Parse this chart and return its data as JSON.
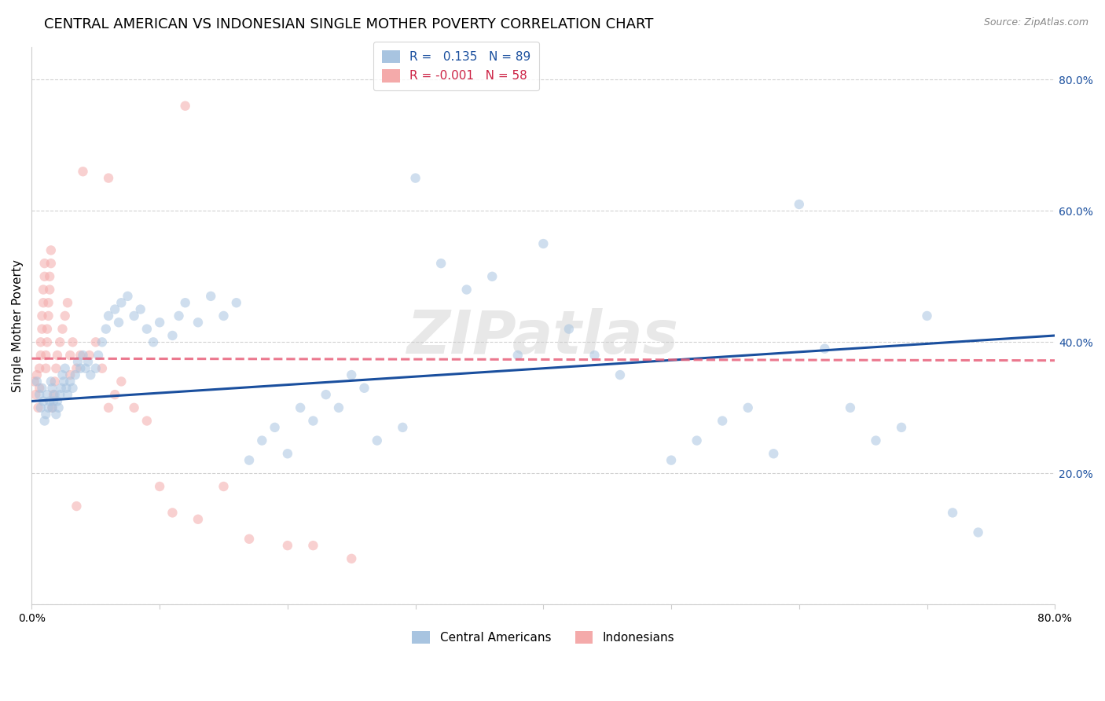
{
  "title": "CENTRAL AMERICAN VS INDONESIAN SINGLE MOTHER POVERTY CORRELATION CHART",
  "source": "Source: ZipAtlas.com",
  "ylabel": "Single Mother Poverty",
  "xlim": [
    0.0,
    0.8
  ],
  "ylim": [
    0.0,
    0.85
  ],
  "ytick_positions": [
    0.0,
    0.2,
    0.4,
    0.6,
    0.8
  ],
  "ytick_labels": [
    "",
    "20.0%",
    "40.0%",
    "60.0%",
    "80.0%"
  ],
  "blue_R": 0.135,
  "blue_N": 89,
  "pink_R": -0.001,
  "pink_N": 58,
  "blue_color": "#A8C4E0",
  "pink_color": "#F4AAAA",
  "blue_line_color": "#1A4F9E",
  "pink_line_color": "#E8607A",
  "watermark": "ZIPatlas",
  "legend_label_blue": "Central Americans",
  "legend_label_pink": "Indonesians",
  "blue_scatter_x": [
    0.004,
    0.006,
    0.007,
    0.008,
    0.009,
    0.01,
    0.011,
    0.012,
    0.013,
    0.014,
    0.015,
    0.016,
    0.016,
    0.017,
    0.018,
    0.019,
    0.02,
    0.021,
    0.022,
    0.023,
    0.024,
    0.025,
    0.026,
    0.027,
    0.028,
    0.03,
    0.032,
    0.034,
    0.036,
    0.038,
    0.04,
    0.042,
    0.044,
    0.046,
    0.05,
    0.052,
    0.055,
    0.058,
    0.06,
    0.065,
    0.068,
    0.07,
    0.075,
    0.08,
    0.085,
    0.09,
    0.095,
    0.1,
    0.11,
    0.115,
    0.12,
    0.13,
    0.14,
    0.15,
    0.16,
    0.17,
    0.18,
    0.19,
    0.2,
    0.21,
    0.22,
    0.23,
    0.24,
    0.25,
    0.26,
    0.27,
    0.29,
    0.3,
    0.32,
    0.34,
    0.36,
    0.38,
    0.4,
    0.42,
    0.44,
    0.46,
    0.5,
    0.52,
    0.54,
    0.56,
    0.58,
    0.6,
    0.62,
    0.64,
    0.66,
    0.68,
    0.7,
    0.72,
    0.74
  ],
  "blue_scatter_y": [
    0.34,
    0.32,
    0.3,
    0.33,
    0.31,
    0.28,
    0.29,
    0.32,
    0.3,
    0.31,
    0.34,
    0.33,
    0.3,
    0.31,
    0.32,
    0.29,
    0.31,
    0.3,
    0.32,
    0.33,
    0.35,
    0.34,
    0.36,
    0.33,
    0.32,
    0.34,
    0.33,
    0.35,
    0.37,
    0.36,
    0.38,
    0.36,
    0.37,
    0.35,
    0.36,
    0.38,
    0.4,
    0.42,
    0.44,
    0.45,
    0.43,
    0.46,
    0.47,
    0.44,
    0.45,
    0.42,
    0.4,
    0.43,
    0.41,
    0.44,
    0.46,
    0.43,
    0.47,
    0.44,
    0.46,
    0.22,
    0.25,
    0.27,
    0.23,
    0.3,
    0.28,
    0.32,
    0.3,
    0.35,
    0.33,
    0.25,
    0.27,
    0.65,
    0.52,
    0.48,
    0.5,
    0.38,
    0.55,
    0.42,
    0.38,
    0.35,
    0.22,
    0.25,
    0.28,
    0.3,
    0.23,
    0.61,
    0.39,
    0.3,
    0.25,
    0.27,
    0.44,
    0.14,
    0.11
  ],
  "pink_scatter_x": [
    0.002,
    0.003,
    0.004,
    0.005,
    0.006,
    0.006,
    0.007,
    0.007,
    0.008,
    0.008,
    0.009,
    0.009,
    0.01,
    0.01,
    0.011,
    0.011,
    0.012,
    0.012,
    0.013,
    0.013,
    0.014,
    0.014,
    0.015,
    0.015,
    0.016,
    0.017,
    0.018,
    0.019,
    0.02,
    0.022,
    0.024,
    0.026,
    0.028,
    0.03,
    0.032,
    0.035,
    0.038,
    0.04,
    0.045,
    0.05,
    0.055,
    0.06,
    0.065,
    0.07,
    0.08,
    0.09,
    0.1,
    0.11,
    0.13,
    0.15,
    0.17,
    0.2,
    0.22,
    0.25,
    0.03,
    0.035,
    0.12,
    0.06
  ],
  "pink_scatter_y": [
    0.34,
    0.32,
    0.35,
    0.3,
    0.33,
    0.36,
    0.38,
    0.4,
    0.42,
    0.44,
    0.46,
    0.48,
    0.5,
    0.52,
    0.36,
    0.38,
    0.4,
    0.42,
    0.44,
    0.46,
    0.48,
    0.5,
    0.52,
    0.54,
    0.3,
    0.32,
    0.34,
    0.36,
    0.38,
    0.4,
    0.42,
    0.44,
    0.46,
    0.38,
    0.4,
    0.36,
    0.38,
    0.66,
    0.38,
    0.4,
    0.36,
    0.3,
    0.32,
    0.34,
    0.3,
    0.28,
    0.18,
    0.14,
    0.13,
    0.18,
    0.1,
    0.09,
    0.09,
    0.07,
    0.35,
    0.15,
    0.76,
    0.65
  ],
  "background_color": "#FFFFFF",
  "grid_color": "#CCCCCC",
  "title_fontsize": 13,
  "axis_fontsize": 11,
  "tick_fontsize": 10,
  "scatter_size": 80,
  "scatter_alpha": 0.55,
  "line_width": 2.2
}
